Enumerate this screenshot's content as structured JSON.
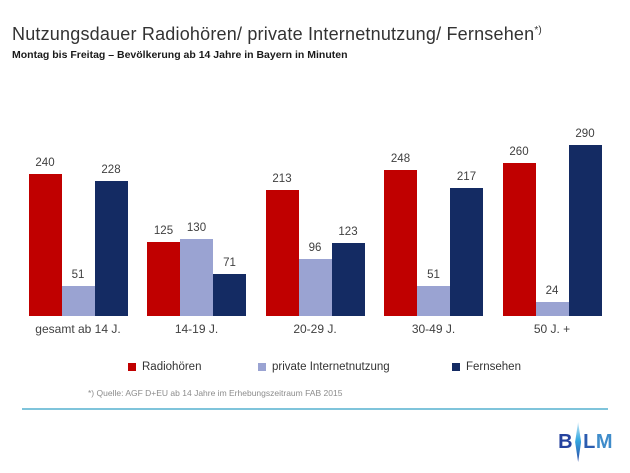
{
  "header": {
    "title": "Nutzungsdauer Radiohören/ private Internetnutzung/ Fernsehen",
    "title_marker": "*)",
    "subtitle": "Montag bis Freitag – Bevölkerung ab 14 Jahre in Bayern in Minuten"
  },
  "chart_data": {
    "type": "bar",
    "title": "Nutzungsdauer Radiohören/ private Internetnutzung/ Fernsehen*)",
    "subtitle": "Montag bis Freitag – Bevölkerung ab 14 Jahre in Bayern in Minuten",
    "unit": "Minuten",
    "categories": [
      "gesamt ab 14 J.",
      "14-19 J.",
      "20-29 J.",
      "30-49 J.",
      "50 J. +"
    ],
    "series": [
      {
        "name": "Radiohören",
        "color": "#c00000",
        "values": [
          240,
          125,
          213,
          248,
          260
        ]
      },
      {
        "name": "private Internetnutzung",
        "color": "#9aa3d2",
        "values": [
          51,
          130,
          96,
          51,
          24
        ]
      },
      {
        "name": "Fernsehen",
        "color": "#142b63",
        "values": [
          228,
          71,
          123,
          217,
          290
        ]
      }
    ],
    "ylim": [
      0,
      300
    ],
    "grid": false,
    "data_labels": true,
    "legend_position": "bottom"
  },
  "footnote": "*) Quelle: AGF D+EU ab 14 Jahre im Erhebungszeitraum FAB 2015",
  "logo": {
    "b": "B",
    "l": "L",
    "m": "M"
  },
  "colors": {
    "radio_red": "#c00000",
    "internet_periwinkle": "#9aa3d2",
    "tv_navy": "#142b63",
    "separator_blue": "#7fc4db",
    "logo_blue": "#25429e",
    "logo_cyan": "#36a9e1"
  }
}
